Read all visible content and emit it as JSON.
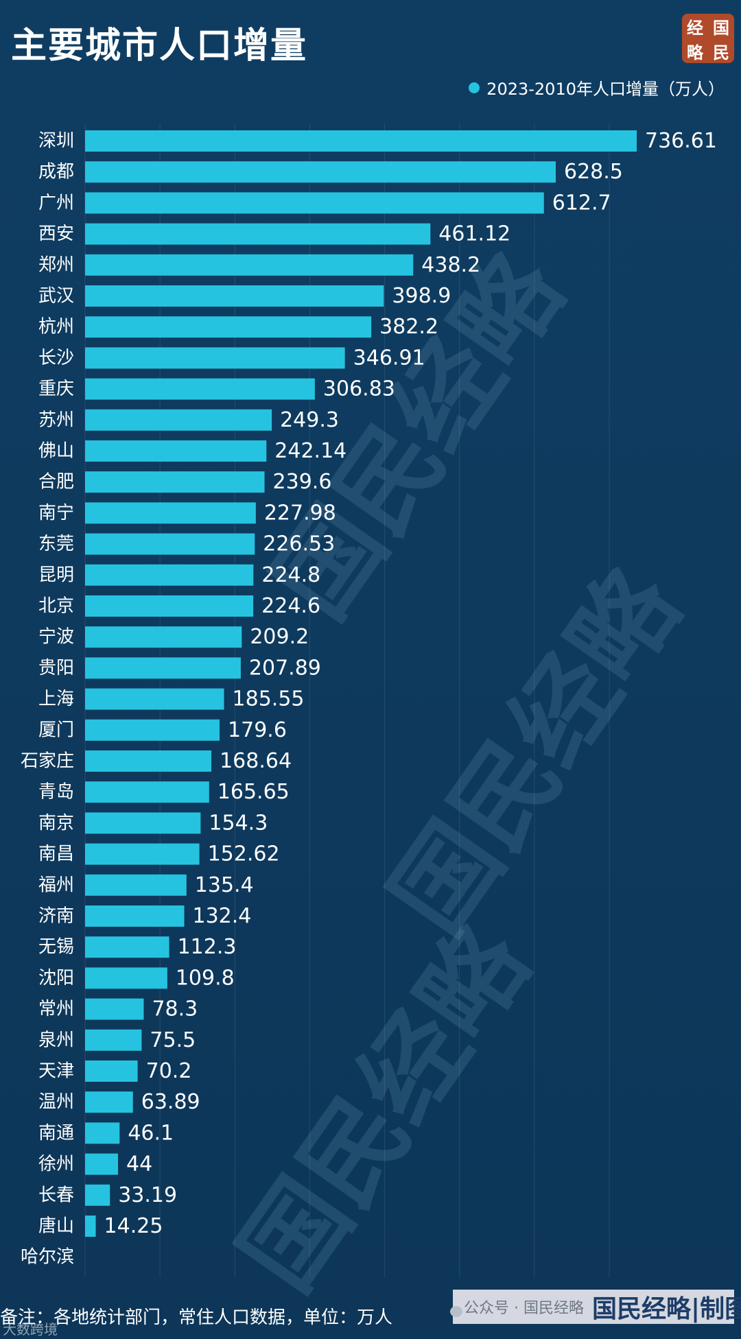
{
  "title": "主要城市人口增量",
  "badge": {
    "chars": [
      "经",
      "国",
      "略",
      "民"
    ]
  },
  "legend": {
    "label": "2023-2010年人口增量（万人）"
  },
  "footnote": "备注：各地统计部门，常住人口数据，单位：万人",
  "watermark_text": "国民经略",
  "corner_watermark": "大数跨境",
  "credit": {
    "account_text": "公众号 · 国民经略",
    "signature": "国民经略|制图"
  },
  "colors": {
    "background": "#0e3a5f",
    "bar": "#26c3e0",
    "text": "#ffffff",
    "badge": "#b04a2a"
  },
  "chart_data": {
    "type": "bar",
    "orientation": "horizontal",
    "series": [
      {
        "name": "2023-2010年人口增量（万人）"
      }
    ],
    "categories": [
      "深圳",
      "成都",
      "广州",
      "西安",
      "郑州",
      "武汉",
      "杭州",
      "长沙",
      "重庆",
      "苏州",
      "佛山",
      "合肥",
      "南宁",
      "东莞",
      "昆明",
      "北京",
      "宁波",
      "贵阳",
      "上海",
      "厦门",
      "石家庄",
      "青岛",
      "南京",
      "南昌",
      "福州",
      "济南",
      "无锡",
      "沈阳",
      "常州",
      "泉州",
      "天津",
      "温州",
      "南通",
      "徐州",
      "长春",
      "唐山",
      "哈尔滨"
    ],
    "values": [
      736.61,
      628.5,
      612.7,
      461.12,
      438.2,
      398.9,
      382.2,
      346.91,
      306.83,
      249.3,
      242.14,
      239.6,
      227.98,
      226.53,
      224.8,
      224.6,
      209.2,
      207.89,
      185.55,
      179.6,
      168.64,
      165.65,
      154.3,
      152.62,
      135.4,
      132.4,
      112.3,
      109.8,
      78.3,
      75.5,
      70.2,
      63.89,
      46.1,
      44,
      33.19,
      14.25,
      null
    ],
    "value_labels": [
      "736.61",
      "628.5",
      "612.7",
      "461.12",
      "438.2",
      "398.9",
      "382.2",
      "346.91",
      "306.83",
      "249.3",
      "242.14",
      "239.6",
      "227.98",
      "226.53",
      "224.8",
      "224.6",
      "209.2",
      "207.89",
      "185.55",
      "179.6",
      "168.64",
      "165.65",
      "154.3",
      "152.62",
      "135.4",
      "132.4",
      "112.3",
      "109.8",
      "78.3",
      "75.5",
      "70.2",
      "63.89",
      "46.1",
      "44",
      "33.19",
      "14.25",
      ""
    ],
    "xlim": [
      0,
      750
    ],
    "grid": true,
    "legend_position": "top-right"
  }
}
